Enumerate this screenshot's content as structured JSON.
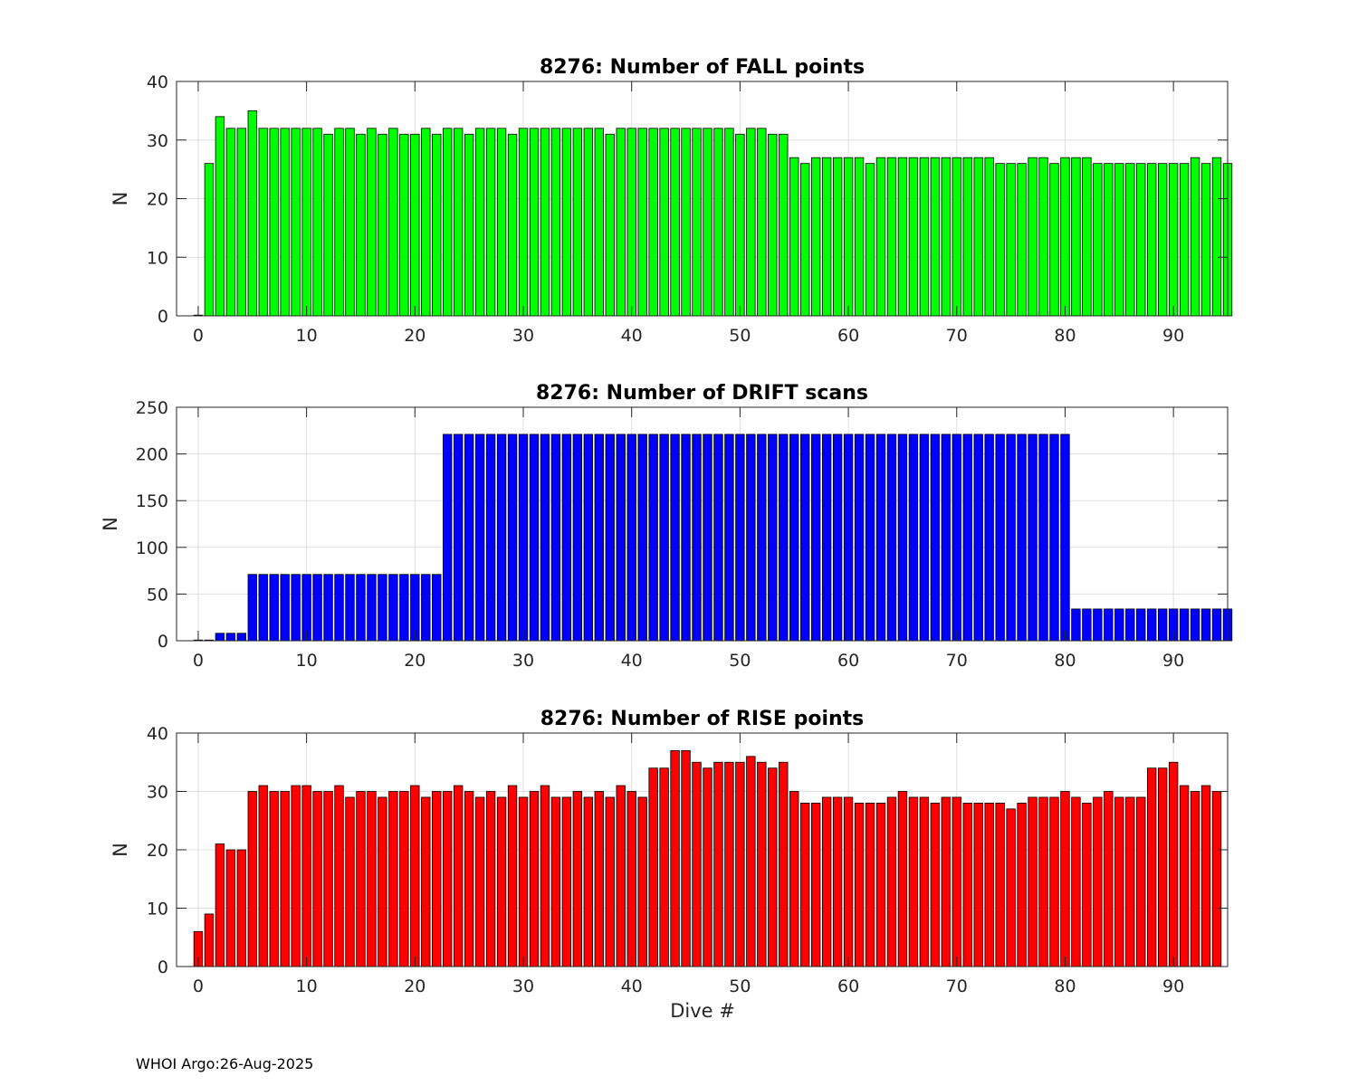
{
  "footer": "WHOI Argo:26-Aug-2025",
  "xlabel": "Dive #",
  "chart_data": [
    {
      "type": "bar",
      "title": "8276: Number of FALL points",
      "ylabel": "N",
      "xlabel": "",
      "color": "#00ff00",
      "xlim": [
        -2,
        95
      ],
      "ylim": [
        0,
        40
      ],
      "xticks": [
        0,
        10,
        20,
        30,
        40,
        50,
        60,
        70,
        80,
        90
      ],
      "yticks": [
        0,
        10,
        20,
        30,
        40
      ],
      "grid": true,
      "x_start": 0,
      "values": [
        0,
        26,
        34,
        32,
        32,
        35,
        32,
        32,
        32,
        32,
        32,
        32,
        31,
        32,
        32,
        31,
        32,
        31,
        32,
        31,
        31,
        32,
        31,
        32,
        32,
        31,
        32,
        32,
        32,
        31,
        32,
        32,
        32,
        32,
        32,
        32,
        32,
        32,
        31,
        32,
        32,
        32,
        32,
        32,
        32,
        32,
        32,
        32,
        32,
        32,
        31,
        32,
        32,
        31,
        31,
        27,
        26,
        27,
        27,
        27,
        27,
        27,
        26,
        27,
        27,
        27,
        27,
        27,
        27,
        27,
        27,
        27,
        27,
        27,
        26,
        26,
        26,
        27,
        27,
        26,
        27,
        27,
        27,
        26,
        26,
        26,
        26,
        26,
        26,
        26,
        26,
        26,
        27,
        26,
        27,
        26
      ]
    },
    {
      "type": "bar",
      "title": "8276: Number of DRIFT scans",
      "ylabel": "N",
      "xlabel": "",
      "color": "#0000ff",
      "xlim": [
        -2,
        95
      ],
      "ylim": [
        0,
        250
      ],
      "xticks": [
        0,
        10,
        20,
        30,
        40,
        50,
        60,
        70,
        80,
        90
      ],
      "yticks": [
        0,
        50,
        100,
        150,
        200,
        250
      ],
      "grid": true,
      "x_start": 0,
      "values": [
        0,
        0,
        8,
        8,
        8,
        71,
        71,
        71,
        71,
        71,
        71,
        71,
        71,
        71,
        71,
        71,
        71,
        71,
        71,
        71,
        71,
        71,
        71,
        221,
        221,
        221,
        221,
        221,
        221,
        221,
        221,
        221,
        221,
        221,
        221,
        221,
        221,
        221,
        221,
        221,
        221,
        221,
        221,
        221,
        221,
        221,
        221,
        221,
        221,
        221,
        221,
        221,
        221,
        221,
        221,
        221,
        221,
        221,
        221,
        221,
        221,
        221,
        221,
        221,
        221,
        221,
        221,
        221,
        221,
        221,
        221,
        221,
        221,
        221,
        221,
        221,
        221,
        221,
        221,
        221,
        221,
        34,
        34,
        34,
        34,
        34,
        34,
        34,
        34,
        34,
        34,
        34,
        34,
        34,
        34,
        34
      ]
    },
    {
      "type": "bar",
      "title": "8276: Number of RISE points",
      "ylabel": "N",
      "xlabel": "Dive #",
      "color": "#ff0000",
      "xlim": [
        -2,
        95
      ],
      "ylim": [
        0,
        40
      ],
      "xticks": [
        0,
        10,
        20,
        30,
        40,
        50,
        60,
        70,
        80,
        90
      ],
      "yticks": [
        0,
        10,
        20,
        30,
        40
      ],
      "grid": true,
      "x_start": 0,
      "values": [
        6,
        9,
        21,
        20,
        20,
        30,
        31,
        30,
        30,
        31,
        31,
        30,
        30,
        31,
        29,
        30,
        30,
        29,
        30,
        30,
        31,
        29,
        30,
        30,
        31,
        30,
        29,
        30,
        29,
        31,
        29,
        30,
        31,
        29,
        29,
        30,
        29,
        30,
        29,
        31,
        30,
        29,
        34,
        34,
        37,
        37,
        35,
        34,
        35,
        35,
        35,
        36,
        35,
        34,
        35,
        30,
        28,
        28,
        29,
        29,
        29,
        28,
        28,
        28,
        29,
        30,
        29,
        29,
        28,
        29,
        29,
        28,
        28,
        28,
        28,
        27,
        28,
        29,
        29,
        29,
        30,
        29,
        28,
        29,
        30,
        29,
        29,
        29,
        34,
        34,
        35,
        31,
        30,
        31,
        30
      ]
    }
  ]
}
